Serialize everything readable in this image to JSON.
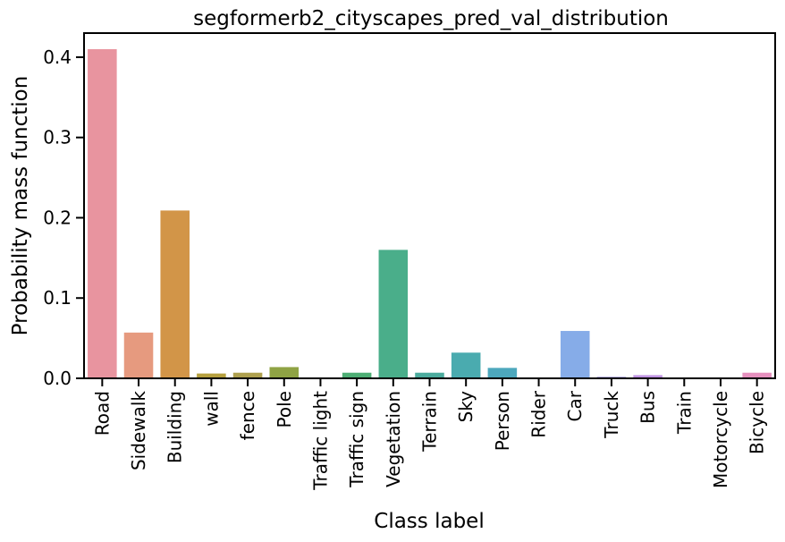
{
  "chart_data": {
    "type": "bar",
    "title": "segformerb2_cityscapes_pred_val_distribution",
    "xlabel": "Class label",
    "ylabel": "Probability mass function",
    "ylim": [
      0,
      0.43
    ],
    "yticks": [
      0.0,
      0.1,
      0.2,
      0.3,
      0.4
    ],
    "ytick_labels": [
      "0.0",
      "0.1",
      "0.2",
      "0.3",
      "0.4"
    ],
    "grid": false,
    "legend": "none",
    "categories": [
      "Road",
      "Sidewalk",
      "Building",
      "wall",
      "fence",
      "Pole",
      "Traffic light",
      "Traffic sign",
      "Vegetation",
      "Terrain",
      "Sky",
      "Person",
      "Rider",
      "Car",
      "Truck",
      "Bus",
      "Train",
      "Motorcycle",
      "Bicycle"
    ],
    "values": [
      0.41,
      0.057,
      0.209,
      0.006,
      0.007,
      0.014,
      0.001,
      0.007,
      0.16,
      0.007,
      0.032,
      0.013,
      0.001,
      0.059,
      0.002,
      0.004,
      0.001,
      0.001,
      0.007
    ],
    "colors": [
      "#e8949f",
      "#e69a7f",
      "#d29548",
      "#b6a03e",
      "#aea04e",
      "#8fa344",
      "#4fab58",
      "#4dae74",
      "#4aae8a",
      "#4bab9d",
      "#4aabaf",
      "#4da8bd",
      "#57a3d8",
      "#86ace8",
      "#a8a0e5",
      "#c094e3",
      "#d78fe2",
      "#e48ad3",
      "#e690be"
    ]
  }
}
